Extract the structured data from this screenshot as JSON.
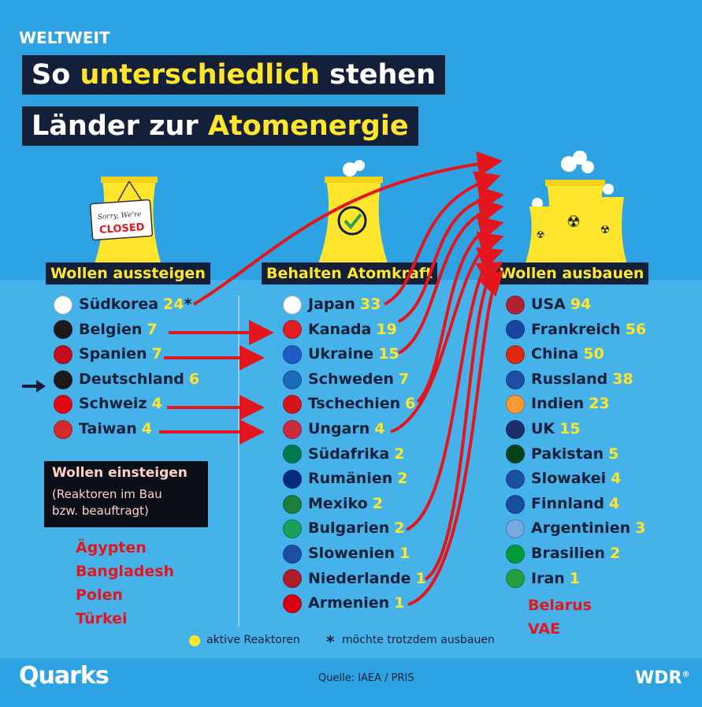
{
  "header": {
    "kicker": "WELTWEIT",
    "line1_a": "So ",
    "line1_b": "unterschiedlich",
    "line1_c": " stehen",
    "line2_a": "Länder zur ",
    "line2_b": "Atomenergie"
  },
  "sign": {
    "line1": "Sorry, We're",
    "line2": "CLOSED"
  },
  "columns": {
    "aussteigen": {
      "title": "Wollen aussteigen",
      "items": [
        {
          "country": "Südkorea",
          "count": "24",
          "mark": "*",
          "flag": "kr"
        },
        {
          "country": "Belgien",
          "count": "7",
          "flag": "be"
        },
        {
          "country": "Spanien",
          "count": "7",
          "flag": "es"
        },
        {
          "country": "Deutschland",
          "count": "6",
          "flag": "de"
        },
        {
          "country": "Schweiz",
          "count": "4",
          "flag": "ch"
        },
        {
          "country": "Taiwan",
          "count": "4",
          "flag": "tw"
        }
      ]
    },
    "behalten": {
      "title": "Behalten Atomkraft",
      "items": [
        {
          "country": "Japan",
          "count": "33",
          "flag": "jp"
        },
        {
          "country": "Kanada",
          "count": "19",
          "flag": "ca"
        },
        {
          "country": "Ukraine",
          "count": "15",
          "flag": "ua"
        },
        {
          "country": "Schweden",
          "count": "7",
          "flag": "se"
        },
        {
          "country": "Tschechien",
          "count": "6",
          "flag": "cz"
        },
        {
          "country": "Ungarn",
          "count": "4",
          "flag": "hu"
        },
        {
          "country": "Südafrika",
          "count": "2",
          "flag": "za"
        },
        {
          "country": "Rumänien",
          "count": "2",
          "flag": "ro"
        },
        {
          "country": "Mexiko",
          "count": "2",
          "flag": "mx"
        },
        {
          "country": "Bulgarien",
          "count": "2",
          "flag": "bg"
        },
        {
          "country": "Slowenien",
          "count": "1",
          "flag": "si"
        },
        {
          "country": "Niederlande",
          "count": "1",
          "flag": "nl"
        },
        {
          "country": "Armenien",
          "count": "1",
          "flag": "am"
        }
      ]
    },
    "ausbauen": {
      "title": "Wollen ausbauen",
      "items": [
        {
          "country": "USA",
          "count": "94",
          "flag": "us"
        },
        {
          "country": "Frankreich",
          "count": "56",
          "flag": "fr"
        },
        {
          "country": "China",
          "count": "50",
          "flag": "cn"
        },
        {
          "country": "Russland",
          "count": "38",
          "flag": "ru"
        },
        {
          "country": "Indien",
          "count": "23",
          "flag": "in"
        },
        {
          "country": "UK",
          "count": "15",
          "flag": "uk"
        },
        {
          "country": "Pakistan",
          "count": "5",
          "flag": "pk"
        },
        {
          "country": "Slowakei",
          "count": "4",
          "flag": "sk"
        },
        {
          "country": "Finnland",
          "count": "4",
          "flag": "fi"
        },
        {
          "country": "Argentinien",
          "count": "3",
          "flag": "ar"
        },
        {
          "country": "Brasilien",
          "count": "2",
          "flag": "br"
        },
        {
          "country": "Iran",
          "count": "1",
          "flag": "ir"
        }
      ],
      "extra": [
        "Belarus",
        "VAE"
      ]
    }
  },
  "einsteigen": {
    "title": "Wollen einsteigen",
    "sub1": "(Reaktoren im Bau",
    "sub2": "bzw. beauftragt)",
    "items": [
      "Ägypten",
      "Bangladesh",
      "Polen",
      "Türkei"
    ]
  },
  "legend": {
    "active": "aktive Reaktoren",
    "star_symbol": "*",
    "expand": "möchte trotzdem ausbauen"
  },
  "footer": {
    "brand": "Quarks",
    "source": "Quelle: IAEA / PRIS",
    "broadcaster": "WDR",
    "broadcaster_mark": "®"
  },
  "colors": {
    "background": "#2ea3e3",
    "navy": "#14203a",
    "yellow": "#ffe52c",
    "arrow_red": "#e3161d"
  },
  "flag_colors": {
    "kr": "#ffffff",
    "be": "#1a1a1a",
    "es": "#c60b1e",
    "de": "#1a1a1a",
    "ch": "#e30613",
    "tw": "#d72a2a",
    "jp": "#ffffff",
    "ca": "#e31b23",
    "ua": "#1e5bc6",
    "se": "#1a6bb8",
    "cz": "#d7141a",
    "hu": "#cd2a3e",
    "za": "#007a4d",
    "ro": "#002b7f",
    "mx": "#1b7f3e",
    "bg": "#19a05a",
    "si": "#1c4fa3",
    "nl": "#ae1c28",
    "am": "#d90012",
    "us": "#b22234",
    "fr": "#1a45a0",
    "cn": "#de2910",
    "ru": "#1c4fa3",
    "in": "#ff9933",
    "uk": "#1a2f6c",
    "pk": "#01411c",
    "sk": "#1c4fa3",
    "fi": "#1a4ca0",
    "ar": "#74acdf",
    "br": "#009c3b",
    "ir": "#239f40"
  }
}
